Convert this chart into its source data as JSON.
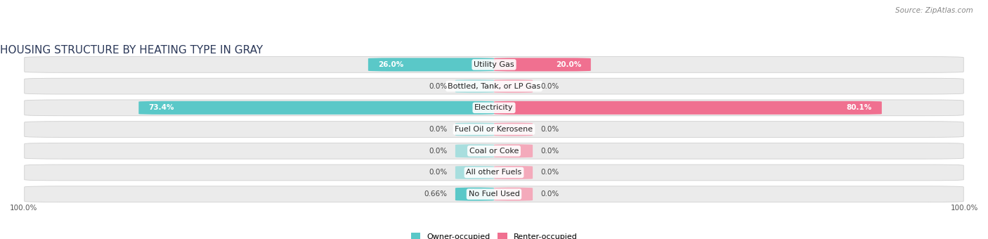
{
  "title": "HOUSING STRUCTURE BY HEATING TYPE IN GRAY",
  "source": "Source: ZipAtlas.com",
  "categories": [
    "Utility Gas",
    "Bottled, Tank, or LP Gas",
    "Electricity",
    "Fuel Oil or Kerosene",
    "Coal or Coke",
    "All other Fuels",
    "No Fuel Used"
  ],
  "owner_values": [
    26.0,
    0.0,
    73.4,
    0.0,
    0.0,
    0.0,
    0.66
  ],
  "renter_values": [
    20.0,
    0.0,
    80.1,
    0.0,
    0.0,
    0.0,
    0.0
  ],
  "owner_color": "#5ac8c8",
  "owner_color_light": "#a8dede",
  "renter_color": "#f07090",
  "renter_color_light": "#f4aabb",
  "row_bg_color": "#ebebeb",
  "row_border_color": "#d0d0d0",
  "max_value": 100.0,
  "fig_width": 14.06,
  "fig_height": 3.4,
  "title_fontsize": 11,
  "label_fontsize": 8,
  "value_fontsize": 7.5,
  "axis_fontsize": 7.5,
  "legend_fontsize": 8,
  "source_fontsize": 7.5,
  "min_bar_width": 0.04,
  "bar_height": 0.62
}
